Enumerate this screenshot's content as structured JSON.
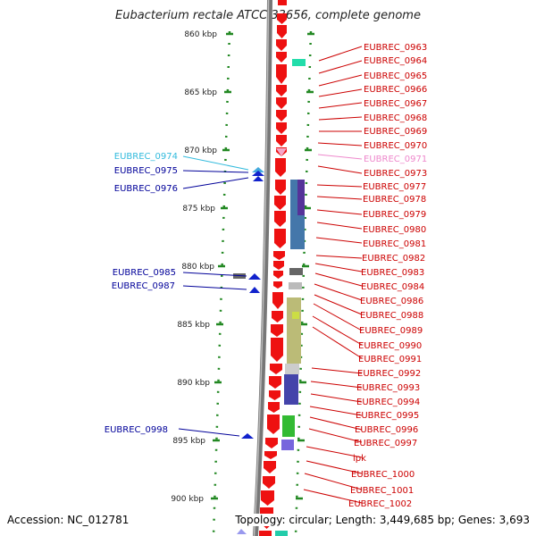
{
  "title": "Eubacterium rectale ATCC 33656, complete genome",
  "footer": {
    "accession": "Accession: NC_012781",
    "topology": "Topology: circular; Length: 3,449,685 bp; Genes: 3,693"
  },
  "scale": {
    "start_kbp": 860,
    "end_kbp": 900,
    "ticks": [
      "860 kbp",
      "865 kbp",
      "870 kbp",
      "875 kbp",
      "880 kbp",
      "885 kbp",
      "890 kbp",
      "895 kbp",
      "900 kbp"
    ]
  },
  "colors": {
    "forward_gene": "#ee1111",
    "reverse_gene": "#1122cc",
    "label_red": "#cc0000",
    "label_blue": "#000099",
    "label_cyan": "#33bbdd",
    "label_pink": "#ee88cc",
    "tick_green": "#228822"
  },
  "left_labels": [
    {
      "text": "EUBREC_0974",
      "color": "#33bbdd"
    },
    {
      "text": "EUBREC_0975",
      "color": "#000099"
    },
    {
      "text": "EUBREC_0976",
      "color": "#000099"
    },
    {
      "text": "EUBREC_0985",
      "color": "#000099"
    },
    {
      "text": "EUBREC_0987",
      "color": "#000099"
    },
    {
      "text": "EUBREC_0998",
      "color": "#000099"
    }
  ],
  "right_labels": [
    {
      "text": "EUBREC_0963",
      "color": "#cc0000"
    },
    {
      "text": "EUBREC_0964",
      "color": "#cc0000"
    },
    {
      "text": "EUBREC_0965",
      "color": "#cc0000"
    },
    {
      "text": "EUBREC_0966",
      "color": "#cc0000"
    },
    {
      "text": "EUBREC_0967",
      "color": "#cc0000"
    },
    {
      "text": "EUBREC_0968",
      "color": "#cc0000"
    },
    {
      "text": "EUBREC_0969",
      "color": "#cc0000"
    },
    {
      "text": "EUBREC_0970",
      "color": "#cc0000"
    },
    {
      "text": "EUBREC_0971",
      "color": "#ee88cc"
    },
    {
      "text": "EUBREC_0973",
      "color": "#cc0000"
    },
    {
      "text": "EUBREC_0977",
      "color": "#cc0000"
    },
    {
      "text": "EUBREC_0978",
      "color": "#cc0000"
    },
    {
      "text": "EUBREC_0979",
      "color": "#cc0000"
    },
    {
      "text": "EUBREC_0980",
      "color": "#cc0000"
    },
    {
      "text": "EUBREC_0981",
      "color": "#cc0000"
    },
    {
      "text": "EUBREC_0982",
      "color": "#cc0000"
    },
    {
      "text": "EUBREC_0983",
      "color": "#cc0000"
    },
    {
      "text": "EUBREC_0984",
      "color": "#cc0000"
    },
    {
      "text": "EUBREC_0986",
      "color": "#cc0000"
    },
    {
      "text": "EUBREC_0988",
      "color": "#cc0000"
    },
    {
      "text": "EUBREC_0989",
      "color": "#cc0000"
    },
    {
      "text": "EUBREC_0990",
      "color": "#cc0000"
    },
    {
      "text": "EUBREC_0991",
      "color": "#cc0000"
    },
    {
      "text": "EUBREC_0992",
      "color": "#cc0000"
    },
    {
      "text": "EUBREC_0993",
      "color": "#cc0000"
    },
    {
      "text": "EUBREC_0994",
      "color": "#cc0000"
    },
    {
      "text": "EUBREC_0995",
      "color": "#cc0000"
    },
    {
      "text": "EUBREC_0996",
      "color": "#cc0000"
    },
    {
      "text": "EUBREC_0997",
      "color": "#cc0000"
    },
    {
      "text": "ipk",
      "color": "#cc0000"
    },
    {
      "text": "EUBREC_1000",
      "color": "#cc0000"
    },
    {
      "text": "EUBREC_1001",
      "color": "#cc0000"
    },
    {
      "text": "EUBREC_1002",
      "color": "#cc0000"
    }
  ]
}
